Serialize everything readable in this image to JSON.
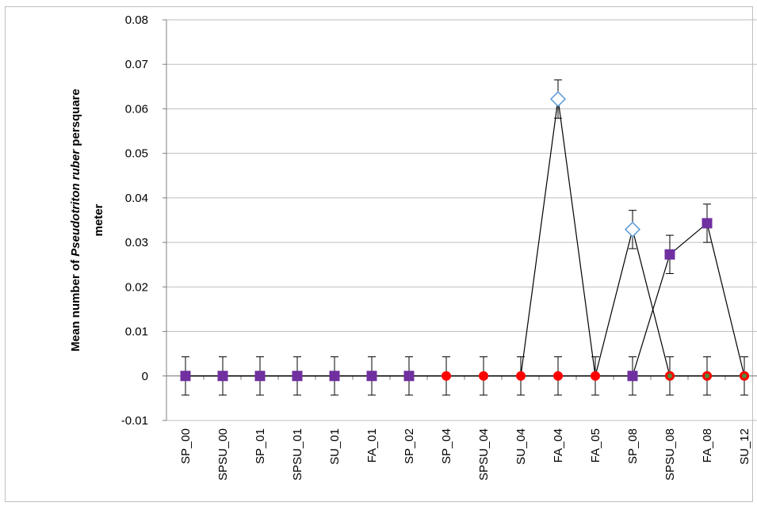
{
  "chart_data": {
    "type": "line",
    "title": "",
    "ylabel_parts": [
      "Mean number of ",
      "Pseudotriton ruber",
      " per",
      "square",
      "meter"
    ],
    "xlabel": "",
    "ylim": [
      -0.01,
      0.08
    ],
    "y_ticks": [
      "0.08",
      "0.07",
      "0.06",
      "0.05",
      "0.04",
      "0.03",
      "0.02",
      "0.01",
      "0",
      "-0.01"
    ],
    "y_tick_values": [
      0.08,
      0.07,
      0.06,
      0.05,
      0.04,
      0.03,
      0.02,
      0.01,
      0,
      -0.01
    ],
    "grid": true,
    "categories": [
      "SP_00",
      "SPSU_00",
      "SP_01",
      "SPSU_01",
      "SU_01",
      "FA_01",
      "SP_02",
      "SP_04",
      "SPSU_04",
      "SU_04",
      "FA_04",
      "FA_05",
      "SP_08",
      "SPSU_08",
      "FA_08",
      "SU_12"
    ],
    "series": [
      {
        "marker": "diamond-open",
        "color": "#5b9bd5",
        "values": [
          0,
          0,
          0,
          0,
          0,
          0,
          0,
          0,
          0,
          0,
          0.0622,
          0,
          0.0329,
          0,
          0,
          0
        ]
      },
      {
        "marker": "circle",
        "color": "#ff0000",
        "values": [
          0,
          0,
          0,
          0,
          0,
          0,
          0,
          0,
          0,
          0,
          0,
          0,
          0,
          0,
          0,
          0
        ]
      },
      {
        "marker": "square",
        "color": "#7030a0",
        "values": [
          0,
          0,
          0,
          0,
          0,
          0,
          0,
          0,
          0,
          0,
          0,
          0,
          0,
          0.0273,
          0.0343,
          0
        ]
      },
      {
        "marker": "triangle",
        "color": "#4f8a3a",
        "values": [
          0,
          0,
          0,
          0,
          0,
          0,
          0,
          0,
          0,
          0,
          0,
          0,
          0,
          0,
          0,
          0
        ]
      }
    ],
    "error_bar": 0.0043
  }
}
